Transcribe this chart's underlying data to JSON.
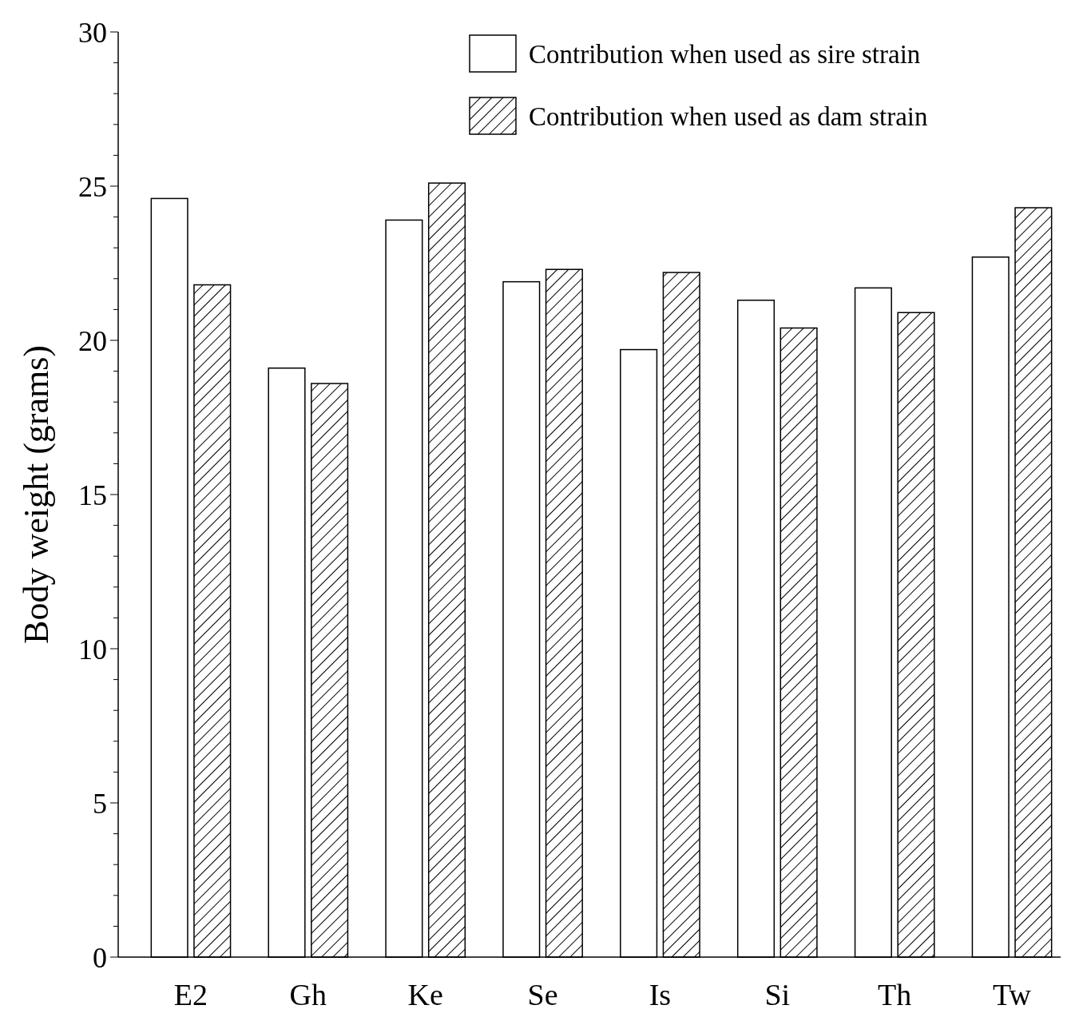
{
  "chart_data": {
    "type": "bar",
    "ylabel": "Body weight (grams)",
    "categories": [
      "E2",
      "Gh",
      "Ke",
      "Se",
      "Is",
      "Si",
      "Th",
      "Tw"
    ],
    "series": [
      {
        "name": "Contribution when used as sire strain",
        "color": "#ffffff",
        "values": [
          24.6,
          19.1,
          23.9,
          21.9,
          19.7,
          21.3,
          21.7,
          22.7
        ]
      },
      {
        "name": "Contribution when used as dam strain",
        "color": "#000000",
        "values": [
          21.8,
          18.6,
          25.1,
          22.3,
          22.2,
          20.4,
          20.9,
          24.3
        ]
      }
    ],
    "ylim": [
      0,
      30
    ],
    "yticks": [
      0,
      {
        "value": 1,
        "label": null
      },
      {
        "value": 2,
        "label": null
      },
      {
        "value": 3,
        "label": null
      },
      {
        "value": 4,
        "label": null
      },
      5,
      {
        "value": 6,
        "label": null
      },
      {
        "value": 7,
        "label": null
      },
      {
        "value": 8,
        "label": null
      },
      {
        "value": 9,
        "label": null
      },
      10,
      {
        "value": 11,
        "label": null
      },
      {
        "value": 12,
        "label": null
      },
      {
        "value": 13,
        "label": null
      },
      {
        "value": 14,
        "label": null
      },
      15,
      {
        "value": 16,
        "label": null
      },
      {
        "value": 17,
        "label": null
      },
      {
        "value": 18,
        "label": null
      },
      {
        "value": 19,
        "label": null
      },
      20,
      {
        "value": 21,
        "label": null
      },
      {
        "value": 22,
        "label": null
      },
      {
        "value": 23,
        "label": null
      },
      {
        "value": 24,
        "label": null
      },
      25,
      {
        "value": 26,
        "label": null
      },
      {
        "value": 27,
        "label": null
      },
      {
        "value": 28,
        "label": null
      },
      {
        "value": 29,
        "label": null
      },
      30
    ],
    "legend": "top right",
    "grid": false
  }
}
